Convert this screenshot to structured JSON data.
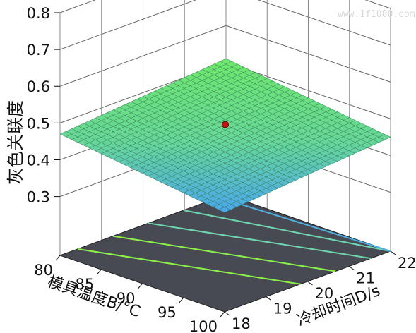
{
  "chart_data": {
    "type": "surface3d",
    "zlabel": "灰色关联度",
    "xlabel": "模具温度B/°C",
    "ylabel": "冷却时间D/s",
    "xlim": [
      80,
      100
    ],
    "ylim": [
      18,
      22
    ],
    "zlim": [
      0.3,
      0.8
    ],
    "x_ticks": [
      80,
      85,
      90,
      95,
      100
    ],
    "y_ticks": [
      18,
      19,
      20,
      21,
      22
    ],
    "z_ticks": [
      "0.3",
      "0.4",
      "0.5",
      "0.6",
      "0.7",
      "0.8"
    ],
    "surface_corners": [
      {
        "x": 80,
        "y": 18,
        "z": 0.47
      },
      {
        "x": 80,
        "y": 22,
        "z": 0.51
      },
      {
        "x": 100,
        "y": 18,
        "z": 0.41
      },
      {
        "x": 100,
        "y": 22,
        "z": 0.45
      }
    ],
    "center_point": {
      "x": 90,
      "y": 20,
      "z": 0.49,
      "color": "#c01010"
    },
    "contour_lines": 5,
    "grid": true,
    "colors": {
      "surface_high": "#6ee86a",
      "surface_low": "#4aa6ef",
      "floor": "#474a52",
      "contour": "#8cf24a"
    }
  },
  "watermark": "www.1f1080.com"
}
